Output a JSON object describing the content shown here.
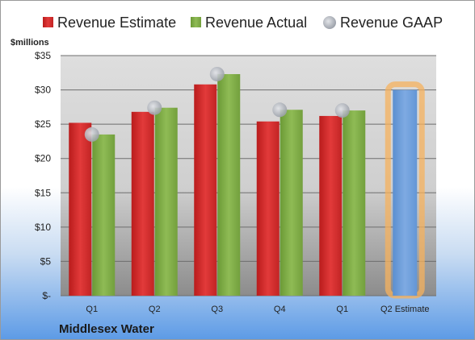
{
  "colors": {
    "estimate": "#d92b2b",
    "actual": "#7faa46",
    "gaap": "#b8bcc4",
    "forecast": "#6f9fdc",
    "highlight": "#f5b25d"
  },
  "chart_data": {
    "type": "bar",
    "unit_label": "$millions",
    "categories": [
      "Q1",
      "Q2",
      "Q3",
      "Q4",
      "Q1",
      "Q2 Estimate"
    ],
    "ylim": [
      0,
      35
    ],
    "yticks": [
      0,
      5,
      10,
      15,
      20,
      25,
      30,
      35
    ],
    "ytick_labels": [
      "$-",
      "$5",
      "$10",
      "$15",
      "$20",
      "$25",
      "$30",
      "$35"
    ],
    "series": [
      {
        "name": "Revenue Estimate",
        "values": [
          25.2,
          26.8,
          30.8,
          25.4,
          26.2,
          null
        ]
      },
      {
        "name": "Revenue Actual",
        "values": [
          23.5,
          27.4,
          32.3,
          27.1,
          27.0,
          null
        ]
      },
      {
        "name": "Revenue GAAP",
        "values": [
          23.5,
          27.4,
          32.3,
          27.1,
          27.0,
          null
        ]
      }
    ],
    "estimate_bar": {
      "category": "Q2 Estimate",
      "value": 30.0
    },
    "legend": [
      "Revenue Estimate",
      "Revenue Actual",
      "Revenue GAAP"
    ],
    "legend_position": "top",
    "grid": true,
    "footer": "Middlesex Water"
  }
}
